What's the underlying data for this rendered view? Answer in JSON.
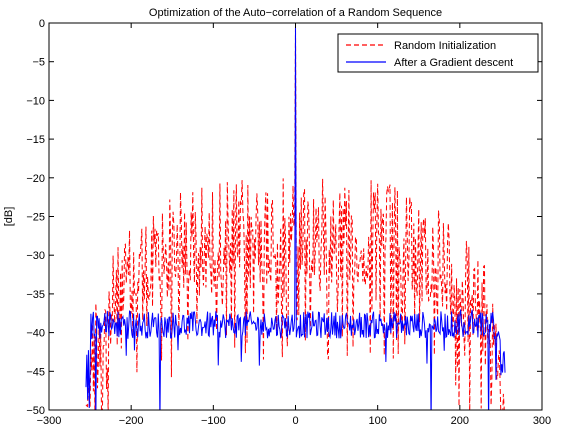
{
  "chart_data": {
    "type": "line",
    "title": "Optimization of the Auto−correlation of a Random Sequence",
    "xlabel": "",
    "ylabel": "[dB]",
    "xlim": [
      -300,
      300
    ],
    "ylim": [
      -50,
      0
    ],
    "x_ticks": [
      -300,
      -200,
      -100,
      0,
      100,
      200,
      300
    ],
    "x_tick_labels": [
      "−300",
      "−200",
      "−100",
      "0",
      "100",
      "200",
      "300"
    ],
    "y_ticks": [
      0,
      -5,
      -10,
      -15,
      -20,
      -25,
      -30,
      -35,
      -40,
      -45,
      -50
    ],
    "y_tick_labels": [
      "0",
      "−5",
      "−10",
      "−15",
      "−20",
      "−25",
      "−30",
      "−35",
      "−40",
      "−45",
      "−50"
    ],
    "grid": false,
    "legend_position": "top-right",
    "x_range": [
      -255,
      255
    ],
    "peak": {
      "x": 0,
      "y": 0
    },
    "series": [
      {
        "name": "Random Initialization",
        "color": "#ff0000",
        "style": "dashed",
        "width": 1,
        "envelope_center": -20,
        "envelope_edge": -37,
        "floor": -50
      },
      {
        "name": "After a Gradient descent",
        "color": "#0000ff",
        "style": "solid",
        "width": 1,
        "mean_level": -39,
        "edge_level": -37,
        "floor": -50,
        "deep_nulls_x": [
          -243,
          -165,
          165,
          235
        ]
      }
    ]
  }
}
